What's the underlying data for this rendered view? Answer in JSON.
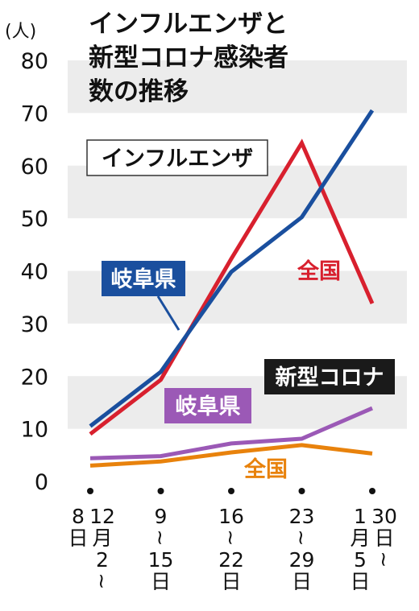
{
  "title_lines": [
    "インフルエンザと",
    "新型コロナ感染者",
    "数の推移"
  ],
  "colors": {
    "flu_gifu": "#1a4f9e",
    "flu_national": "#d8202e",
    "covid_gifu": "#9b59b6",
    "covid_national": "#e8820c",
    "band": "#ececec"
  },
  "chart_data": {
    "type": "line",
    "title": "インフルエンザと新型コロナ感染者数の推移",
    "ylabel": "(人)",
    "ylim": [
      0,
      80
    ],
    "yticks": [
      0,
      10,
      20,
      30,
      40,
      50,
      60,
      70,
      80
    ],
    "grid": "alternating horizontal bands",
    "categories": [
      "12月2~8日",
      "9~15日",
      "16~22日",
      "23~29日",
      "30日~1月5日"
    ],
    "x_label_columns": [
      [
        [
          "8",
          "日"
        ],
        [
          "12",
          "月",
          "2",
          "~"
        ]
      ],
      [
        [
          "9",
          "~",
          "15",
          "日"
        ]
      ],
      [
        [
          "16",
          "~",
          "22",
          "日"
        ]
      ],
      [
        [
          "23",
          "~",
          "29",
          "日"
        ]
      ],
      [
        [
          "1",
          "月",
          "5",
          "日"
        ],
        [
          "30",
          "日",
          "~"
        ]
      ]
    ],
    "groups": [
      {
        "label": "インフルエンザ",
        "series": [
          {
            "name": "岐阜県",
            "color": "#1a4f9e",
            "values": [
              10.5,
              20.8,
              39.8,
              50.2,
              70.5
            ]
          },
          {
            "name": "全国",
            "color": "#d8202e",
            "values": [
              9.0,
              19.3,
              42.3,
              64.3,
              33.8
            ]
          }
        ]
      },
      {
        "label": "新型コロナ",
        "series": [
          {
            "name": "岐阜県",
            "color": "#9b59b6",
            "values": [
              4.4,
              4.8,
              7.2,
              8.1,
              13.9
            ]
          },
          {
            "name": "全国",
            "color": "#e8820c",
            "values": [
              3.0,
              3.8,
              5.5,
              6.9,
              5.3
            ]
          }
        ]
      }
    ]
  }
}
